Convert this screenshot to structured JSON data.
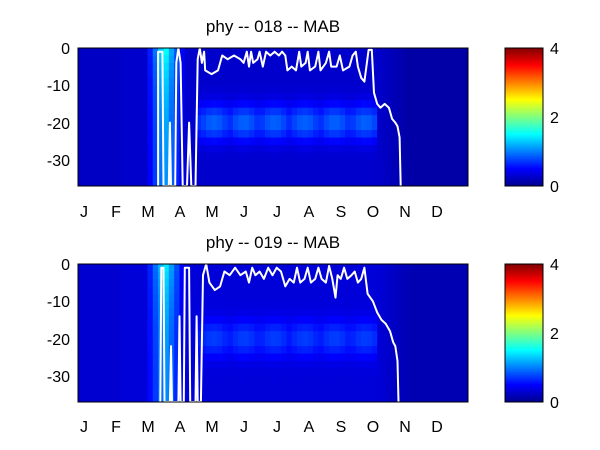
{
  "chart_data": [
    {
      "type": "heatmap",
      "title": "phy -- 018 -- MAB",
      "x_ticks": [
        "J",
        "F",
        "M",
        "A",
        "M",
        "J",
        "J",
        "A",
        "S",
        "O",
        "N",
        "D"
      ],
      "xlim": [
        0,
        365
      ],
      "ylim": [
        -37,
        0
      ],
      "y_ticks": [
        0,
        -10,
        -20,
        -30
      ],
      "colorbar": {
        "range": [
          0,
          4
        ],
        "ticks": [
          0,
          2,
          4
        ],
        "colormap": "jet"
      },
      "field_shape": {
        "bloom_days": [
          63,
          100
        ],
        "bloom_peak": 1.6,
        "background": 0.3,
        "deep_band_depths": [
          -18,
          -22
        ],
        "deep_band_value": 0.9,
        "winter_value": 0.15
      },
      "contour": {
        "color": "#ffffff",
        "points": [
          [
            75,
            -37
          ],
          [
            75,
            -1
          ],
          [
            79,
            -1
          ],
          [
            80,
            -37
          ],
          [
            85,
            -37
          ],
          [
            86,
            -20
          ],
          [
            87,
            -37
          ],
          [
            91,
            -37
          ],
          [
            92,
            -4
          ],
          [
            94,
            0
          ],
          [
            96,
            -4
          ],
          [
            98,
            -37
          ],
          [
            102,
            -37
          ],
          [
            104,
            -20
          ],
          [
            106,
            -37
          ],
          [
            110,
            -37
          ],
          [
            112,
            -3
          ],
          [
            114,
            0
          ],
          [
            116,
            -4
          ],
          [
            118,
            -1
          ],
          [
            119,
            -6
          ],
          [
            125,
            -7
          ],
          [
            131,
            -6
          ],
          [
            135,
            -2
          ],
          [
            140,
            -3
          ],
          [
            146,
            -2
          ],
          [
            152,
            -3
          ],
          [
            155,
            -4
          ],
          [
            158,
            -1
          ],
          [
            160,
            -5
          ],
          [
            162,
            -1
          ],
          [
            164,
            -4
          ],
          [
            168,
            -3
          ],
          [
            170,
            -1
          ],
          [
            173,
            -5
          ],
          [
            176,
            -1
          ],
          [
            180,
            -2
          ],
          [
            184,
            -1
          ],
          [
            188,
            -2
          ],
          [
            191,
            -1
          ],
          [
            194,
            -2
          ],
          [
            196,
            -6
          ],
          [
            200,
            -5
          ],
          [
            204,
            -6
          ],
          [
            207,
            -1
          ],
          [
            209,
            -5
          ],
          [
            213,
            -4
          ],
          [
            215,
            -1
          ],
          [
            217,
            -6
          ],
          [
            222,
            -5
          ],
          [
            225,
            -1
          ],
          [
            227,
            -6
          ],
          [
            232,
            -4
          ],
          [
            235,
            -1
          ],
          [
            237,
            -5
          ],
          [
            242,
            -5
          ],
          [
            245,
            -2
          ],
          [
            248,
            -6
          ],
          [
            254,
            -5
          ],
          [
            257,
            -2
          ],
          [
            260,
            -1
          ],
          [
            262,
            -5
          ],
          [
            265,
            -8
          ],
          [
            268,
            -9
          ],
          [
            272,
            -0.5
          ],
          [
            275,
            -0.5
          ],
          [
            277,
            -12
          ],
          [
            280,
            -15
          ],
          [
            283,
            -16
          ],
          [
            287,
            -15
          ],
          [
            291,
            -16
          ],
          [
            294,
            -19
          ],
          [
            297,
            -20
          ],
          [
            299,
            -21
          ],
          [
            301,
            -24
          ],
          [
            302,
            -37
          ]
        ]
      }
    },
    {
      "type": "heatmap",
      "title": "phy -- 019 -- MAB",
      "x_ticks": [
        "J",
        "F",
        "M",
        "A",
        "M",
        "J",
        "J",
        "A",
        "S",
        "O",
        "N",
        "D"
      ],
      "xlim": [
        0,
        365
      ],
      "ylim": [
        -37,
        0
      ],
      "y_ticks": [
        0,
        -10,
        -20,
        -30
      ],
      "colorbar": {
        "range": [
          0,
          4
        ],
        "ticks": [
          0,
          2,
          4
        ],
        "colormap": "jet"
      },
      "field_shape": {
        "bloom_days": [
          63,
          100
        ],
        "bloom_peak": 1.5,
        "background": 0.35,
        "deep_band_depths": [
          -18,
          -22
        ],
        "deep_band_value": 0.75,
        "winter_value": 0.2
      },
      "contour": {
        "color": "#ffffff",
        "points": [
          [
            77,
            -37
          ],
          [
            78,
            -1
          ],
          [
            80,
            -1
          ],
          [
            81,
            -37
          ],
          [
            86,
            -37
          ],
          [
            87,
            -22
          ],
          [
            88,
            -37
          ],
          [
            94,
            -37
          ],
          [
            95,
            -14
          ],
          [
            96,
            -37
          ],
          [
            99,
            -37
          ],
          [
            100,
            -1
          ],
          [
            104,
            -1
          ],
          [
            105,
            -37
          ],
          [
            110,
            -37
          ],
          [
            111,
            -14
          ],
          [
            112,
            -37
          ],
          [
            115,
            -37
          ],
          [
            117,
            -3
          ],
          [
            120,
            0
          ],
          [
            123,
            -5
          ],
          [
            128,
            -7
          ],
          [
            133,
            -6
          ],
          [
            137,
            -2
          ],
          [
            142,
            -3
          ],
          [
            147,
            -1
          ],
          [
            152,
            -3
          ],
          [
            157,
            -2
          ],
          [
            160,
            -5
          ],
          [
            163,
            -1
          ],
          [
            166,
            -3
          ],
          [
            170,
            -2
          ],
          [
            174,
            -4
          ],
          [
            178,
            -1
          ],
          [
            182,
            -3
          ],
          [
            186,
            -1
          ],
          [
            190,
            -2
          ],
          [
            194,
            -6
          ],
          [
            198,
            -4
          ],
          [
            202,
            -5
          ],
          [
            205,
            -1
          ],
          [
            208,
            -5
          ],
          [
            212,
            -4
          ],
          [
            215,
            -1
          ],
          [
            218,
            -5
          ],
          [
            222,
            -4
          ],
          [
            225,
            -1
          ],
          [
            228,
            -4
          ],
          [
            232,
            -5
          ],
          [
            235,
            -0.5
          ],
          [
            238,
            -4
          ],
          [
            241,
            -9
          ],
          [
            243,
            -3
          ],
          [
            246,
            -4
          ],
          [
            249,
            -1
          ],
          [
            252,
            -4
          ],
          [
            256,
            -3
          ],
          [
            259,
            -2
          ],
          [
            262,
            -5
          ],
          [
            265,
            -4
          ],
          [
            268,
            -1
          ],
          [
            271,
            -8
          ],
          [
            276,
            -10
          ],
          [
            280,
            -13
          ],
          [
            284,
            -15
          ],
          [
            288,
            -16
          ],
          [
            292,
            -18
          ],
          [
            295,
            -21
          ],
          [
            297,
            -22
          ],
          [
            299,
            -26
          ],
          [
            300,
            -37
          ]
        ]
      }
    }
  ]
}
